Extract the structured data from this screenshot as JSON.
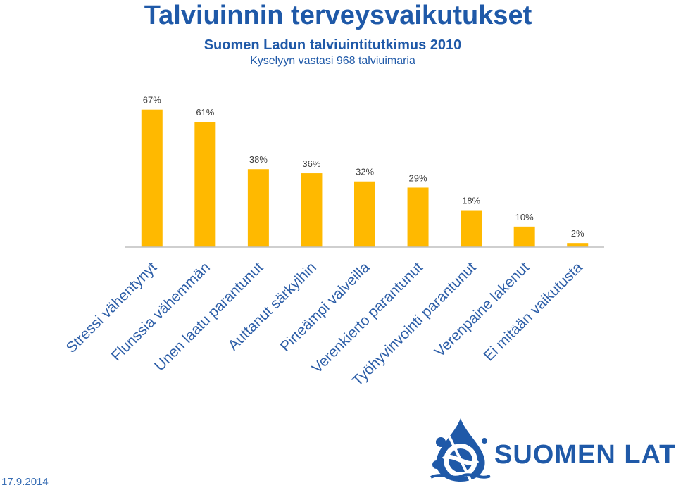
{
  "title": "Talviuinnin terveysvaikutukset",
  "subtitle": "Suomen Ladun talviuintitutkimus 2010",
  "note": "Kyselyyn vastasi 968 talviuimaria",
  "date": "17.9.2014",
  "logo_text": "SUOMEN LATU",
  "colors": {
    "bar": "#FFB900",
    "axis": "#bfbfbf",
    "brand": "#1f59a8",
    "category_text": "#2e5fa8"
  },
  "chart_data": {
    "type": "bar",
    "categories": [
      "Stressi vähentynyt",
      "Flunssia vähemmän",
      "Unen laatu parantunut",
      "Auttanut särkyihin",
      "Pirteämpi valveilla",
      "Verenkierto parantunut",
      "Työhyvinvointi parantunut",
      "Verenpaine lakenut",
      "Ei mitään vaikutusta"
    ],
    "values": [
      67,
      61,
      38,
      36,
      32,
      29,
      18,
      10,
      2
    ],
    "data_labels": [
      "67%",
      "61%",
      "38%",
      "36%",
      "32%",
      "29%",
      "18%",
      "10%",
      "2%"
    ],
    "unit": "%",
    "ylim": [
      0,
      70
    ],
    "grid": false,
    "legend": "none"
  }
}
